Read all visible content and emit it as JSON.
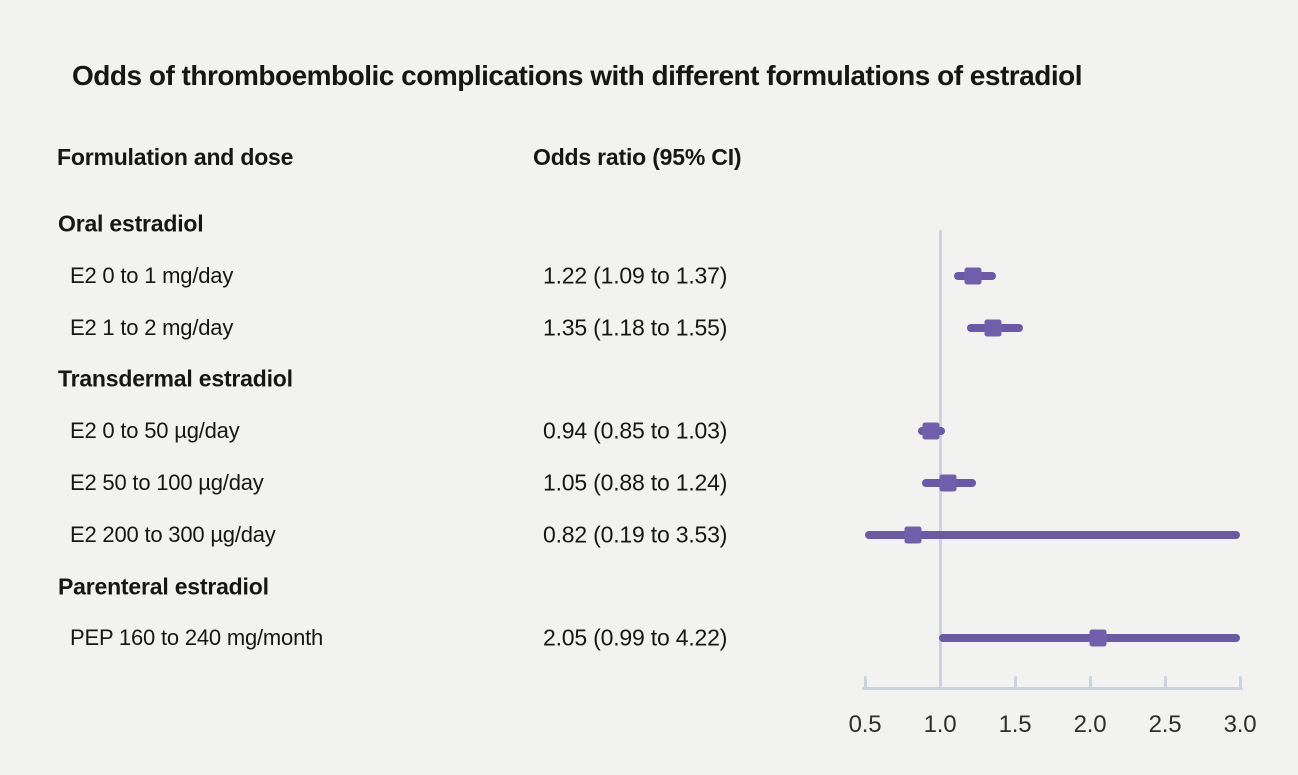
{
  "title": "Odds of thromboembolic complications with different formulations of estradiol",
  "columns": {
    "label": "Formulation and dose",
    "value": "Odds ratio (95% CI)"
  },
  "colors": {
    "background": "#f2f2f0",
    "text": "#161616",
    "ci_line": "#6a59a4",
    "marker": "#7060ab",
    "axis": "#cdd3dc"
  },
  "chart_data": {
    "type": "forest",
    "title": "Odds of thromboembolic complications with different formulations of estradiol",
    "xlabel": "",
    "ylabel": "",
    "xlim": [
      0.5,
      3.0
    ],
    "x_ticks": [
      0.5,
      1.0,
      1.5,
      2.0,
      2.5,
      3.0
    ],
    "x_tick_labels": [
      "0.5",
      "1.0",
      "1.5",
      "2.0",
      "2.5",
      "3.0"
    ],
    "reference_value": 1.0,
    "grid": false,
    "legend": false,
    "rows": [
      {
        "type": "section",
        "label": "Oral estradiol"
      },
      {
        "type": "item",
        "label": "E2 0 to 1 mg/day",
        "value_text": "1.22 (1.09 to 1.37)",
        "or": 1.22,
        "ci_low": 1.09,
        "ci_high": 1.37
      },
      {
        "type": "item",
        "label": "E2 1 to 2 mg/day",
        "value_text": "1.35 (1.18 to 1.55)",
        "or": 1.35,
        "ci_low": 1.18,
        "ci_high": 1.55
      },
      {
        "type": "section",
        "label": "Transdermal estradiol"
      },
      {
        "type": "item",
        "label": "E2 0 to 50 µg/day",
        "value_text": "0.94 (0.85 to 1.03)",
        "or": 0.94,
        "ci_low": 0.85,
        "ci_high": 1.03
      },
      {
        "type": "item",
        "label": "E2 50 to 100 µg/day",
        "value_text": "1.05 (0.88 to 1.24)",
        "or": 1.05,
        "ci_low": 0.88,
        "ci_high": 1.24
      },
      {
        "type": "item",
        "label": "E2 200 to 300 µg/day",
        "value_text": "0.82 (0.19 to 3.53)",
        "or": 0.82,
        "ci_low": 0.19,
        "ci_high": 3.53
      },
      {
        "type": "section",
        "label": "Parenteral estradiol"
      },
      {
        "type": "item",
        "label": "PEP 160 to 240 mg/month",
        "value_text": "2.05 (0.99 to 4.22)",
        "or": 2.05,
        "ci_low": 0.99,
        "ci_high": 4.22
      }
    ]
  }
}
